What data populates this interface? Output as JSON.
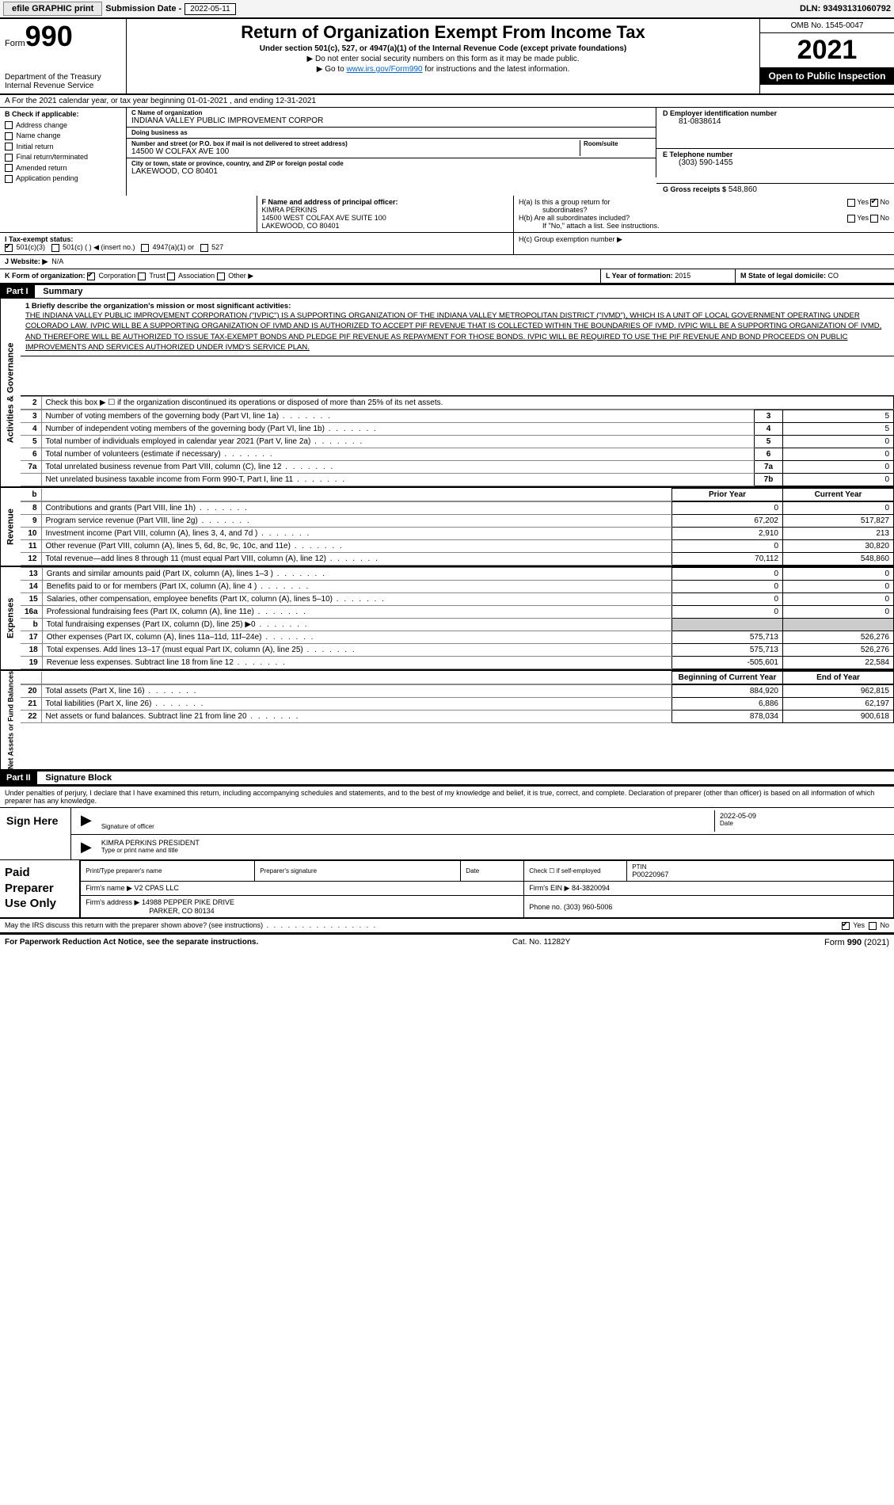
{
  "topstrip": {
    "efile": "efile GRAPHIC print",
    "sub_label": "Submission Date - ",
    "sub_date": "2022-05-11",
    "dln": "DLN: 93493131060792"
  },
  "hdr": {
    "form_label": "Form",
    "form_no": "990",
    "dept": "Department of the Treasury",
    "irs": "Internal Revenue Service",
    "title": "Return of Organization Exempt From Income Tax",
    "sub1": "Under section 501(c), 527, or 4947(a)(1) of the Internal Revenue Code (except private foundations)",
    "sub2": "▶ Do not enter social security numbers on this form as it may be made public.",
    "sub3_pre": "▶ Go to ",
    "sub3_link": "www.irs.gov/Form990",
    "sub3_post": " for instructions and the latest information.",
    "omb": "OMB No. 1545-0047",
    "year": "2021",
    "open": "Open to Public Inspection"
  },
  "A": {
    "line": "A For the 2021 calendar year, or tax year beginning 01-01-2021     , and ending 12-31-2021"
  },
  "B": {
    "hdr": "B Check if applicable:",
    "opts": [
      "Address change",
      "Name change",
      "Initial return",
      "Final return/terminated",
      "Amended return",
      "Application pending"
    ]
  },
  "C": {
    "name_lbl": "C Name of organization",
    "name": "INDIANA VALLEY PUBLIC IMPROVEMENT CORPOR",
    "dba_lbl": "Doing business as",
    "dba": "",
    "addr_lbl": "Number and street (or P.O. box if mail is not delivered to street address)",
    "room_lbl": "Room/suite",
    "addr": "14500 W COLFAX AVE 100",
    "city_lbl": "City or town, state or province, country, and ZIP or foreign postal code",
    "city": "LAKEWOOD, CO  80401"
  },
  "D": {
    "lbl": "D Employer identification number",
    "val": "81-0838614"
  },
  "E": {
    "lbl": "E Telephone number",
    "val": "(303) 590-1455"
  },
  "G": {
    "lbl": "G Gross receipts $",
    "val": "548,860"
  },
  "F": {
    "lbl": "F  Name and address of principal officer:",
    "name": "KIMRA PERKINS",
    "addr1": "14500 WEST COLFAX AVE SUITE 100",
    "addr2": "LAKEWOOD, CO  80401"
  },
  "H": {
    "a": "H(a)  Is this a group return for",
    "a2": "subordinates?",
    "b": "H(b)  Are all subordinates included?",
    "b2": "If \"No,\" attach a list. See instructions.",
    "c": "H(c)  Group exemption number ▶"
  },
  "I": {
    "lbl": "I   Tax-exempt status:",
    "opts": [
      "501(c)(3)",
      "501(c) (  ) ◀ (insert no.)",
      "4947(a)(1) or",
      "527"
    ]
  },
  "J": {
    "lbl": "J   Website: ▶",
    "val": "N/A"
  },
  "K": {
    "lbl": "K Form of organization:",
    "opts": [
      "Corporation",
      "Trust",
      "Association",
      "Other ▶"
    ]
  },
  "L": {
    "lbl": "L Year of formation:",
    "val": "2015"
  },
  "M": {
    "lbl": "M State of legal domicile:",
    "val": "CO"
  },
  "partI": {
    "hdr": "Part I",
    "title": "Summary",
    "sideA": "Activities & Governance",
    "sideR": "Revenue",
    "sideE": "Expenses",
    "sideN": "Net Assets or Fund Balances",
    "l1_lbl": "1   Briefly describe the organization's mission or most significant activities:",
    "l1_txt": "THE INDIANA VALLEY PUBLIC IMPROVEMENT CORPORATION (\"IVPIC\") IS A SUPPORTING ORGANIZATION OF THE INDIANA VALLEY METROPOLITAN DISTRICT (\"IVMD\"), WHICH IS A UNIT OF LOCAL GOVERNMENT OPERATING UNDER COLORADO LAW. IVPIC WILL BE A SUPPORTING ORGANIZATION OF IVMD AND IS AUTHORIZED TO ACCEPT PIF REVENUE THAT IS COLLECTED WITHIN THE BOUNDARIES OF IVMD. IVPIC WILL BE A SUPPORTING ORGANIZATION OF IVMD, AND THEREFORE WILL BE AUTHORIZED TO ISSUE TAX-EXEMPT BONDS AND PLEDGE PIF REVENUE AS REPAYMENT FOR THOSE BONDS. IVPIC WILL BE REQUIRED TO USE THE PIF REVENUE AND BOND PROCEEDS ON PUBLIC IMPROVEMENTS AND SERVICES AUTHORIZED UNDER IVMD'S SERVICE PLAN.",
    "l2": "Check this box ▶ ☐  if the organization discontinued its operations or disposed of more than 25% of its net assets.",
    "rows_gov": [
      {
        "n": "3",
        "d": "Number of voting members of the governing body (Part VI, line 1a)",
        "b": "3",
        "v": "5"
      },
      {
        "n": "4",
        "d": "Number of independent voting members of the governing body (Part VI, line 1b)",
        "b": "4",
        "v": "5"
      },
      {
        "n": "5",
        "d": "Total number of individuals employed in calendar year 2021 (Part V, line 2a)",
        "b": "5",
        "v": "0"
      },
      {
        "n": "6",
        "d": "Total number of volunteers (estimate if necessary)",
        "b": "6",
        "v": "0"
      },
      {
        "n": "7a",
        "d": "Total unrelated business revenue from Part VIII, column (C), line 12",
        "b": "7a",
        "v": "0"
      },
      {
        "n": "",
        "d": "Net unrelated business taxable income from Form 990-T, Part I, line 11",
        "b": "7b",
        "v": "0"
      }
    ],
    "col_prior": "Prior Year",
    "col_curr": "Current Year",
    "rows_rev": [
      {
        "n": "8",
        "d": "Contributions and grants (Part VIII, line 1h)",
        "p": "0",
        "c": "0"
      },
      {
        "n": "9",
        "d": "Program service revenue (Part VIII, line 2g)",
        "p": "67,202",
        "c": "517,827"
      },
      {
        "n": "10",
        "d": "Investment income (Part VIII, column (A), lines 3, 4, and 7d )",
        "p": "2,910",
        "c": "213"
      },
      {
        "n": "11",
        "d": "Other revenue (Part VIII, column (A), lines 5, 6d, 8c, 9c, 10c, and 11e)",
        "p": "0",
        "c": "30,820"
      },
      {
        "n": "12",
        "d": "Total revenue—add lines 8 through 11 (must equal Part VIII, column (A), line 12)",
        "p": "70,112",
        "c": "548,860"
      }
    ],
    "rows_exp": [
      {
        "n": "13",
        "d": "Grants and similar amounts paid (Part IX, column (A), lines 1–3 )",
        "p": "0",
        "c": "0"
      },
      {
        "n": "14",
        "d": "Benefits paid to or for members (Part IX, column (A), line 4 )",
        "p": "0",
        "c": "0"
      },
      {
        "n": "15",
        "d": "Salaries, other compensation, employee benefits (Part IX, column (A), lines 5–10)",
        "p": "0",
        "c": "0"
      },
      {
        "n": "16a",
        "d": "Professional fundraising fees (Part IX, column (A), line 11e)",
        "p": "0",
        "c": "0"
      },
      {
        "n": "b",
        "d": "Total fundraising expenses (Part IX, column (D), line 25) ▶0",
        "p": "",
        "c": "",
        "shade": true
      },
      {
        "n": "17",
        "d": "Other expenses (Part IX, column (A), lines 11a–11d, 11f–24e)",
        "p": "575,713",
        "c": "526,276"
      },
      {
        "n": "18",
        "d": "Total expenses. Add lines 13–17 (must equal Part IX, column (A), line 25)",
        "p": "575,713",
        "c": "526,276"
      },
      {
        "n": "19",
        "d": "Revenue less expenses. Subtract line 18 from line 12",
        "p": "-505,601",
        "c": "22,584"
      }
    ],
    "col_beg": "Beginning of Current Year",
    "col_end": "End of Year",
    "rows_net": [
      {
        "n": "20",
        "d": "Total assets (Part X, line 16)",
        "p": "884,920",
        "c": "962,815"
      },
      {
        "n": "21",
        "d": "Total liabilities (Part X, line 26)",
        "p": "6,886",
        "c": "62,197"
      },
      {
        "n": "22",
        "d": "Net assets or fund balances. Subtract line 21 from line 20",
        "p": "878,034",
        "c": "900,618"
      }
    ]
  },
  "partII": {
    "hdr": "Part II",
    "title": "Signature Block",
    "pen": "Under penalties of perjury, I declare that I have examined this return, including accompanying schedules and statements, and to the best of my knowledge and belief, it is true, correct, and complete. Declaration of preparer (other than officer) is based on all information of which preparer has any knowledge.",
    "sign_lbl": "Sign Here",
    "sig_of_officer": "Signature of officer",
    "date_lbl": "Date",
    "sig_date": "2022-05-09",
    "officer": "KIMRA PERKINS  PRESIDENT",
    "type_lbl": "Type or print name and title",
    "paid_lbl": "Paid Preparer Use Only",
    "prep_name_lbl": "Print/Type preparer's name",
    "prep_sig_lbl": "Preparer's signature",
    "prep_date_lbl": "Date",
    "check_self": "Check ☐ if self-employed",
    "ptin_lbl": "PTIN",
    "ptin": "P00220967",
    "firm_name_lbl": "Firm's name    ▶",
    "firm_name": "V2 CPAS LLC",
    "firm_ein_lbl": "Firm's EIN ▶",
    "firm_ein": "84-3820094",
    "firm_addr_lbl": "Firm's address ▶",
    "firm_addr1": "14988 PEPPER PIKE DRIVE",
    "firm_addr2": "PARKER, CO  80134",
    "phone_lbl": "Phone no.",
    "phone": "(303) 960-5006",
    "discuss": "May the IRS discuss this return with the preparer shown above? (see instructions)",
    "yes": "Yes",
    "no": "No"
  },
  "footer": {
    "l": "For Paperwork Reduction Act Notice, see the separate instructions.",
    "m": "Cat. No. 11282Y",
    "r": "Form 990 (2021)"
  }
}
